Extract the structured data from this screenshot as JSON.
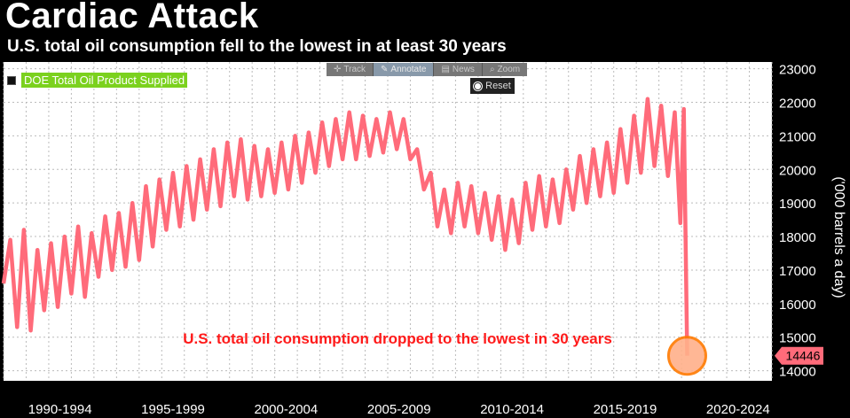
{
  "header": {
    "title": "Cardiac Attack",
    "subtitle": "U.S. total oil consumption fell to the lowest in at least 30 years"
  },
  "legend": {
    "label": "DOE Total Oil Product Supplied"
  },
  "toolbar": {
    "items": [
      "Track",
      "Annotate",
      "News",
      "Zoom"
    ],
    "reset_label": "Reset"
  },
  "colors": {
    "line": "#ff6b7a",
    "annotation": "#ff1a1a",
    "marker_fill": "#ffb08a",
    "marker_stroke": "#ff7a00",
    "label_bg": "#ff6b7a",
    "grid": "#bbbbbb"
  },
  "chart_data": {
    "type": "line",
    "title": "Cardiac Attack",
    "subtitle": "U.S. total oil consumption fell to the lowest in at least 30 years",
    "xlabel": "",
    "ylabel": "('000 barrels a day)",
    "ylim": [
      13700,
      23200
    ],
    "yticks": [
      14000,
      15000,
      16000,
      17000,
      18000,
      19000,
      20000,
      21000,
      22000,
      23000
    ],
    "x_categories": [
      "1990-1994",
      "1995-1999",
      "2000-2004",
      "2005-2009",
      "2010-2014",
      "2015-2019",
      "2020-2024"
    ],
    "xlim": [
      1990,
      2024
    ],
    "series": [
      {
        "name": "DOE Total Oil Product Supplied",
        "points": [
          [
            1990.0,
            16600
          ],
          [
            1990.3,
            17900
          ],
          [
            1990.6,
            15300
          ],
          [
            1990.9,
            18200
          ],
          [
            1991.2,
            15200
          ],
          [
            1991.5,
            17600
          ],
          [
            1991.8,
            15800
          ],
          [
            1992.1,
            17800
          ],
          [
            1992.4,
            15900
          ],
          [
            1992.7,
            18000
          ],
          [
            1993.0,
            16300
          ],
          [
            1993.3,
            18300
          ],
          [
            1993.6,
            16200
          ],
          [
            1993.9,
            18100
          ],
          [
            1994.2,
            16800
          ],
          [
            1994.5,
            18600
          ],
          [
            1994.8,
            17000
          ],
          [
            1995.1,
            18700
          ],
          [
            1995.4,
            17100
          ],
          [
            1995.7,
            19000
          ],
          [
            1996.0,
            17300
          ],
          [
            1996.3,
            19500
          ],
          [
            1996.6,
            17700
          ],
          [
            1996.9,
            19700
          ],
          [
            1997.2,
            18200
          ],
          [
            1997.5,
            19900
          ],
          [
            1997.8,
            18300
          ],
          [
            1998.1,
            20100
          ],
          [
            1998.4,
            18500
          ],
          [
            1998.7,
            20300
          ],
          [
            1999.0,
            18800
          ],
          [
            1999.3,
            20600
          ],
          [
            1999.6,
            18900
          ],
          [
            1999.9,
            20800
          ],
          [
            2000.2,
            19200
          ],
          [
            2000.5,
            20900
          ],
          [
            2000.8,
            19100
          ],
          [
            2001.1,
            20700
          ],
          [
            2001.4,
            19200
          ],
          [
            2001.7,
            20600
          ],
          [
            2002.0,
            19300
          ],
          [
            2002.3,
            20800
          ],
          [
            2002.6,
            19400
          ],
          [
            2002.9,
            21000
          ],
          [
            2003.2,
            19600
          ],
          [
            2003.5,
            21100
          ],
          [
            2003.8,
            19900
          ],
          [
            2004.1,
            21400
          ],
          [
            2004.4,
            20100
          ],
          [
            2004.7,
            21500
          ],
          [
            2005.0,
            20300
          ],
          [
            2005.3,
            21700
          ],
          [
            2005.6,
            20300
          ],
          [
            2005.9,
            21600
          ],
          [
            2006.2,
            20400
          ],
          [
            2006.5,
            21500
          ],
          [
            2006.8,
            20500
          ],
          [
            2007.1,
            21700
          ],
          [
            2007.4,
            20600
          ],
          [
            2007.7,
            21500
          ],
          [
            2008.0,
            20300
          ],
          [
            2008.3,
            20600
          ],
          [
            2008.6,
            19400
          ],
          [
            2008.9,
            19900
          ],
          [
            2009.2,
            18300
          ],
          [
            2009.5,
            19400
          ],
          [
            2009.8,
            18100
          ],
          [
            2010.1,
            19600
          ],
          [
            2010.4,
            18300
          ],
          [
            2010.7,
            19500
          ],
          [
            2011.0,
            18100
          ],
          [
            2011.3,
            19300
          ],
          [
            2011.6,
            17900
          ],
          [
            2011.9,
            19200
          ],
          [
            2012.2,
            17600
          ],
          [
            2012.5,
            19100
          ],
          [
            2012.8,
            17800
          ],
          [
            2013.1,
            19600
          ],
          [
            2013.4,
            18200
          ],
          [
            2013.7,
            19800
          ],
          [
            2014.0,
            18300
          ],
          [
            2014.3,
            19700
          ],
          [
            2014.6,
            18400
          ],
          [
            2014.9,
            20000
          ],
          [
            2015.2,
            18800
          ],
          [
            2015.5,
            20400
          ],
          [
            2015.8,
            19000
          ],
          [
            2016.1,
            20600
          ],
          [
            2016.4,
            19200
          ],
          [
            2016.7,
            20800
          ],
          [
            2017.0,
            19300
          ],
          [
            2017.3,
            21200
          ],
          [
            2017.6,
            19600
          ],
          [
            2017.9,
            21600
          ],
          [
            2018.2,
            19900
          ],
          [
            2018.5,
            22100
          ],
          [
            2018.8,
            20100
          ],
          [
            2019.1,
            21900
          ],
          [
            2019.4,
            19800
          ],
          [
            2019.7,
            21700
          ],
          [
            2019.95,
            18400
          ],
          [
            2020.1,
            21800
          ],
          [
            2020.25,
            14446
          ]
        ]
      }
    ],
    "last_value": 14446,
    "last_value_label": "14446",
    "annotation": "U.S. total oil consumption dropped to the lowest in 30 years"
  }
}
